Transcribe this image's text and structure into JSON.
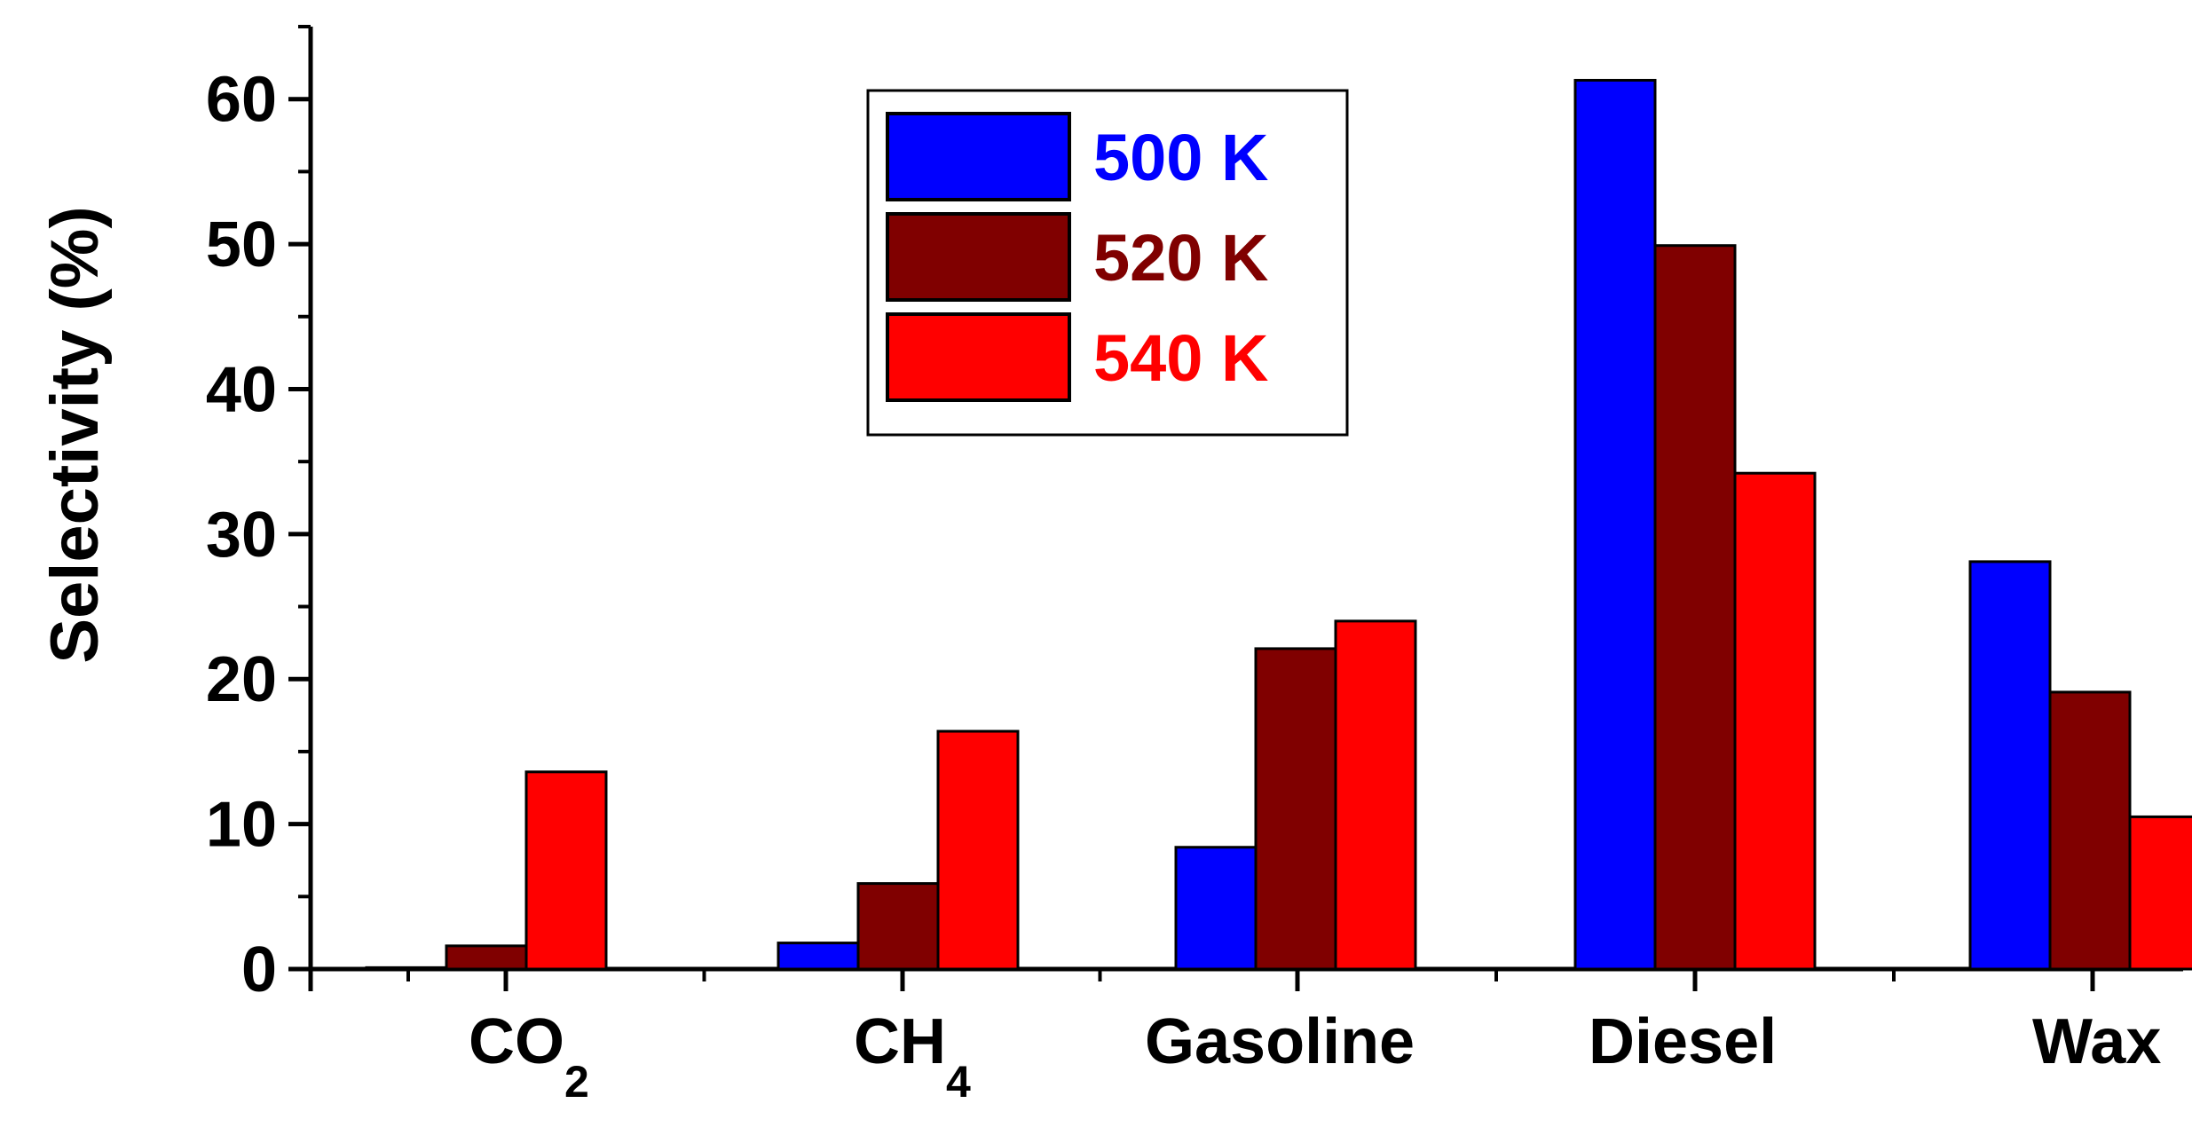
{
  "chart_data": {
    "type": "bar",
    "title": "",
    "xlabel": "",
    "ylabel": "Selectivity (%)",
    "ylim": [
      0,
      65
    ],
    "yticks": [
      "0",
      "10",
      "20",
      "30",
      "40",
      "50",
      "60"
    ],
    "categories": [
      {
        "main": "CO",
        "sub": "2"
      },
      {
        "main": "CH",
        "sub": "4"
      },
      {
        "main": "Gasoline",
        "sub": ""
      },
      {
        "main": "Diesel",
        "sub": ""
      },
      {
        "main": "Wax",
        "sub": ""
      }
    ],
    "series": [
      {
        "name": "500 K",
        "color": "#0000ff",
        "values": [
          0.1,
          1.8,
          8.4,
          61.3,
          28.1
        ]
      },
      {
        "name": "520 K",
        "color": "#800000",
        "values": [
          1.6,
          5.9,
          22.1,
          49.9,
          19.1
        ]
      },
      {
        "name": "540 K",
        "color": "#ff0000",
        "values": [
          13.6,
          16.4,
          24.0,
          34.2,
          10.5
        ]
      }
    ],
    "legend_position": "top-center",
    "grid": false
  }
}
